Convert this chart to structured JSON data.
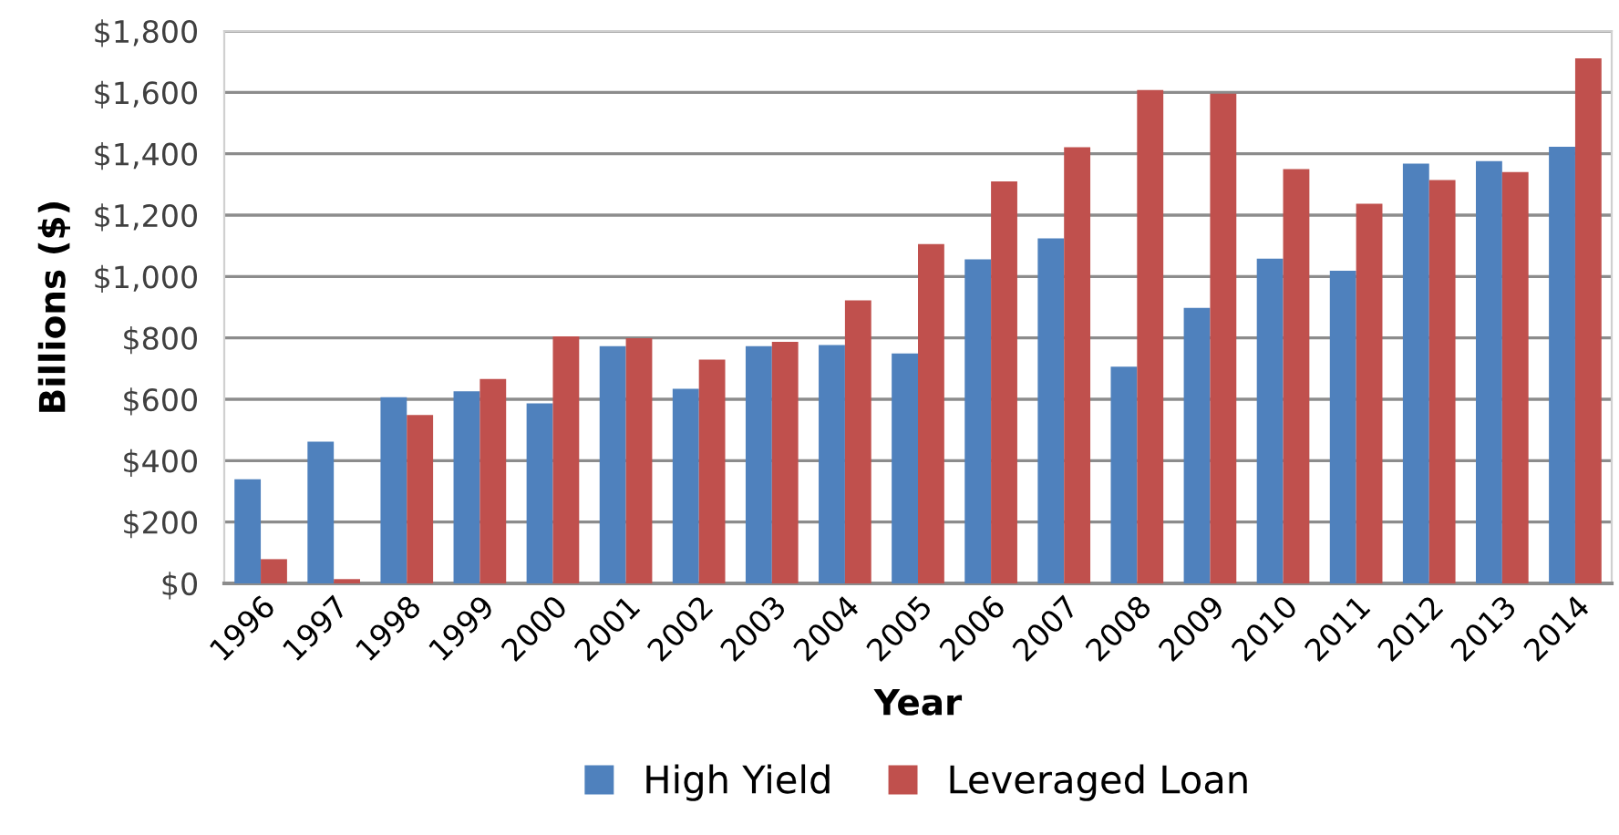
{
  "chart_data": {
    "type": "bar",
    "xlabel": "Year",
    "ylabel": "Billions ($)",
    "categories": [
      "1996",
      "1997",
      "1998",
      "1999",
      "2000",
      "2001",
      "2002",
      "2003",
      "2004",
      "2005",
      "2006",
      "2007",
      "2008",
      "2009",
      "2010",
      "2011",
      "2012",
      "2013",
      "2014"
    ],
    "series": [
      {
        "name": "High Yield",
        "color": "#4f81bd",
        "values": [
          339,
          462,
          607,
          626,
          587,
          773,
          634,
          773,
          777,
          749,
          1056,
          1124,
          706,
          898,
          1058,
          1019,
          1368,
          1376,
          1423
        ]
      },
      {
        "name": "Leveraged Loan",
        "color": "#c0504d",
        "values": [
          79,
          14,
          549,
          666,
          805,
          799,
          729,
          787,
          922,
          1106,
          1310,
          1421,
          1608,
          1596,
          1350,
          1237,
          1314,
          1340,
          1711
        ]
      }
    ],
    "ylim": [
      0,
      1800
    ],
    "yticks": [
      {
        "value": 0,
        "label": "$0"
      },
      {
        "value": 200,
        "label": "$200"
      },
      {
        "value": 400,
        "label": "$400"
      },
      {
        "value": 600,
        "label": "$600"
      },
      {
        "value": 800,
        "label": "$800"
      },
      {
        "value": 1000,
        "label": "$1,000"
      },
      {
        "value": 1200,
        "label": "$1,200"
      },
      {
        "value": 1400,
        "label": "$1,400"
      },
      {
        "value": 1600,
        "label": "$1,600"
      },
      {
        "value": 1800,
        "label": "$1,800"
      }
    ],
    "grid": "y",
    "legend": "bottom"
  }
}
